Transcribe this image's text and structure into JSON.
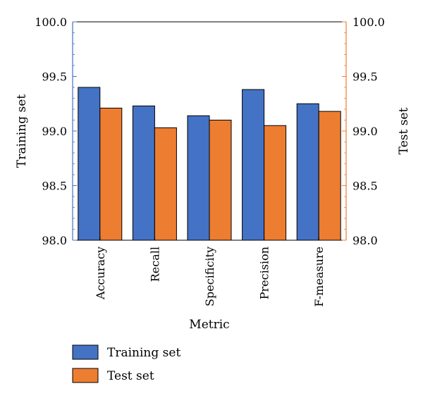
{
  "chart_data": {
    "type": "bar",
    "categories": [
      "Accuracy",
      "Recall",
      "Specificity",
      "Precision",
      "F-measure"
    ],
    "series": [
      {
        "name": "Training set",
        "values": [
          99.4,
          99.23,
          99.14,
          99.38,
          99.25
        ],
        "color": "#4472C4"
      },
      {
        "name": "Test set",
        "values": [
          99.21,
          99.03,
          99.1,
          99.05,
          99.18
        ],
        "color": "#ED7D31"
      }
    ],
    "xlabel": "Metric",
    "ylabel": "Training set",
    "ylabel_right": "Test set",
    "ylim": [
      98.0,
      100.0
    ],
    "yticks": [
      "98.0",
      "98.5",
      "99.0",
      "99.5",
      "100.0"
    ],
    "grid": false,
    "legend_position": "bottom-left",
    "axis_colors": {
      "left": "#4472C4",
      "right": "#ED7D31"
    }
  }
}
